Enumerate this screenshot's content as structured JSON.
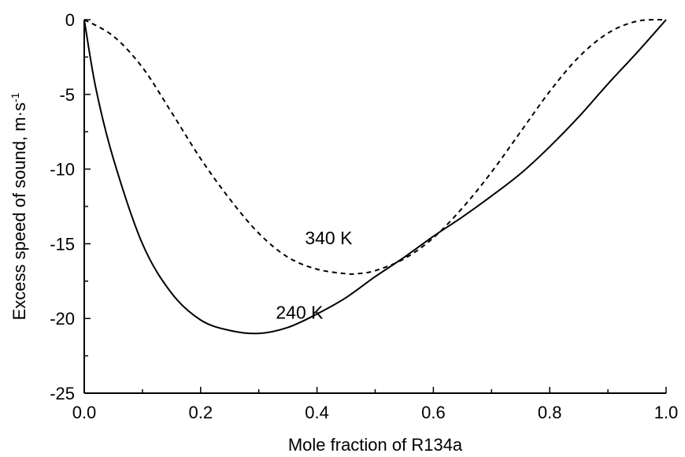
{
  "chart_data": {
    "type": "line",
    "title": "",
    "xlabel": "Mole fraction of R134a",
    "ylabel": "Excess speed of sound, m·s",
    "ylabel_superscript": "-1",
    "xlim": [
      0.0,
      1.0
    ],
    "ylim": [
      -25,
      0
    ],
    "xticks": [
      0.0,
      0.2,
      0.4,
      0.6,
      0.8,
      1.0
    ],
    "xtick_labels": [
      "0.0",
      "0.2",
      "0.4",
      "0.6",
      "0.8",
      "1.0"
    ],
    "yticks": [
      0,
      -5,
      -10,
      -15,
      -20,
      -25
    ],
    "ytick_labels": [
      "0",
      "-5",
      "-10",
      "-15",
      "-20",
      "-25"
    ],
    "grid": false,
    "legend": "none",
    "series": [
      {
        "label_text": "340 K",
        "style": "dashed",
        "color": "#000000",
        "x": [
          0.0,
          0.05,
          0.1,
          0.15,
          0.2,
          0.25,
          0.3,
          0.35,
          0.4,
          0.45,
          0.47,
          0.5,
          0.55,
          0.6,
          0.65,
          0.7,
          0.75,
          0.8,
          0.85,
          0.9,
          0.95,
          1.0
        ],
        "y": [
          0.0,
          -1.1,
          -3.2,
          -6.2,
          -9.3,
          -12.0,
          -14.3,
          -15.9,
          -16.7,
          -17.0,
          -17.0,
          -16.8,
          -16.0,
          -14.6,
          -12.6,
          -10.2,
          -7.5,
          -4.8,
          -2.5,
          -0.9,
          -0.1,
          0.0
        ]
      },
      {
        "label_text": "240 K",
        "style": "solid",
        "color": "#000000",
        "x": [
          0.0,
          0.02,
          0.05,
          0.1,
          0.15,
          0.2,
          0.25,
          0.3,
          0.35,
          0.4,
          0.45,
          0.5,
          0.55,
          0.6,
          0.65,
          0.7,
          0.75,
          0.8,
          0.85,
          0.9,
          0.95,
          1.0
        ],
        "y": [
          0.0,
          -4.6,
          -9.3,
          -15.0,
          -18.3,
          -20.1,
          -20.8,
          -21.0,
          -20.6,
          -19.7,
          -18.6,
          -17.2,
          -15.9,
          -14.5,
          -13.2,
          -11.8,
          -10.3,
          -8.5,
          -6.5,
          -4.3,
          -2.2,
          0.0
        ]
      }
    ],
    "annotations": [
      {
        "text": "340 K",
        "x": 0.42,
        "y": -14.6
      },
      {
        "text": "240 K",
        "x": 0.37,
        "y": -19.6
      }
    ]
  }
}
